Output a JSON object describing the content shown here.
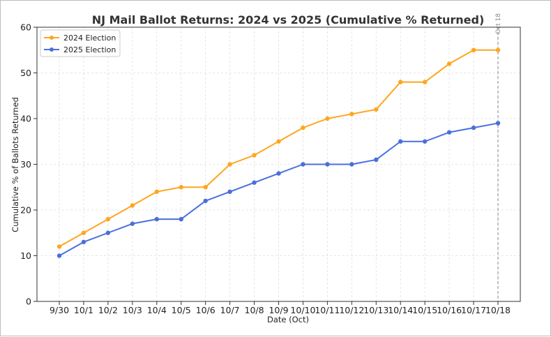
{
  "chart_data": {
    "type": "line",
    "title": "NJ Mail Ballot Returns: 2024 vs 2025 (Cumulative % Returned)",
    "xlabel": "Date (Oct)",
    "ylabel": "Cumulative % of Ballots Returned",
    "categories": [
      "9/30",
      "10/1",
      "10/2",
      "10/3",
      "10/4",
      "10/5",
      "10/6",
      "10/7",
      "10/8",
      "10/9",
      "10/10",
      "10/11",
      "10/12",
      "10/13",
      "10/14",
      "10/15",
      "10/16",
      "10/17",
      "10/18"
    ],
    "ylim": [
      0,
      60
    ],
    "yticks": [
      0,
      10,
      20,
      30,
      40,
      50,
      60
    ],
    "grid": true,
    "legend_position": "top-left",
    "series": [
      {
        "name": "2024 Election",
        "color": "#FFA51E",
        "values": [
          12,
          15,
          18,
          21,
          24,
          25,
          25,
          30,
          32,
          35,
          38,
          40,
          41,
          42,
          48,
          48,
          52,
          55,
          55
        ]
      },
      {
        "name": "2025 Election",
        "color": "#4A6FDC",
        "values": [
          10,
          13,
          15,
          17,
          18,
          18,
          22,
          24,
          26,
          28,
          30,
          30,
          30,
          31,
          35,
          35,
          37,
          38,
          39
        ]
      }
    ],
    "annotations": [
      {
        "type": "vertical-line",
        "category": "10/18",
        "label": "Oct 18",
        "color": "#999999",
        "style": "dashed"
      }
    ]
  }
}
